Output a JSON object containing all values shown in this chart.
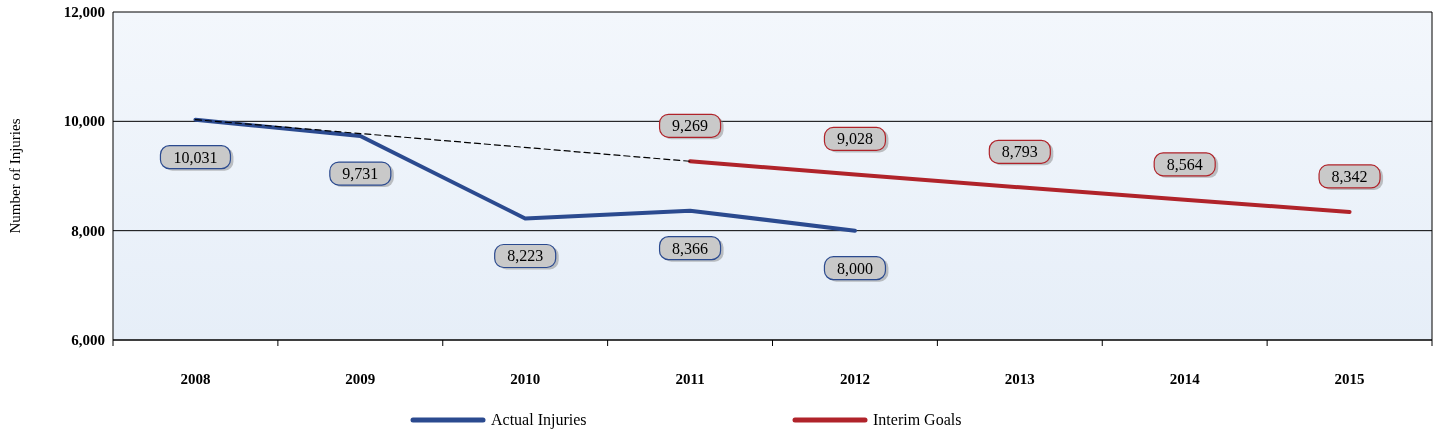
{
  "chart_data": {
    "type": "line",
    "ylabel": "Number of Injuries",
    "categories": [
      "2008",
      "2009",
      "2010",
      "2011",
      "2012",
      "2013",
      "2014",
      "2015"
    ],
    "ylim": [
      6000,
      12000
    ],
    "yticks": [
      {
        "value": 6000,
        "label": "6,000"
      },
      {
        "value": 8000,
        "label": "8,000"
      },
      {
        "value": 10000,
        "label": "10,000"
      },
      {
        "value": 12000,
        "label": "12,000"
      }
    ],
    "grid": "y",
    "legend": "bottom",
    "marker": "none",
    "series": [
      {
        "name": "Actual Injuries",
        "color": "#2b4a8f",
        "values": [
          10031,
          9731,
          8223,
          8366,
          8000,
          null,
          null,
          null
        ],
        "value_labels": [
          "10,031",
          "9,731",
          "8,223",
          "8,366",
          "8,000",
          null,
          null,
          null
        ]
      },
      {
        "name": "Interim Goals",
        "color": "#b0232a",
        "values": [
          null,
          null,
          null,
          9269,
          9028,
          8793,
          8564,
          8342
        ],
        "value_labels": [
          null,
          null,
          null,
          "9,269",
          "9,028",
          "8,793",
          "8,564",
          "8,342"
        ]
      },
      {
        "color": "#000000",
        "line_style": "dashed",
        "values": [
          10031,
          null,
          null,
          9269,
          null,
          null,
          null,
          null
        ]
      }
    ]
  }
}
